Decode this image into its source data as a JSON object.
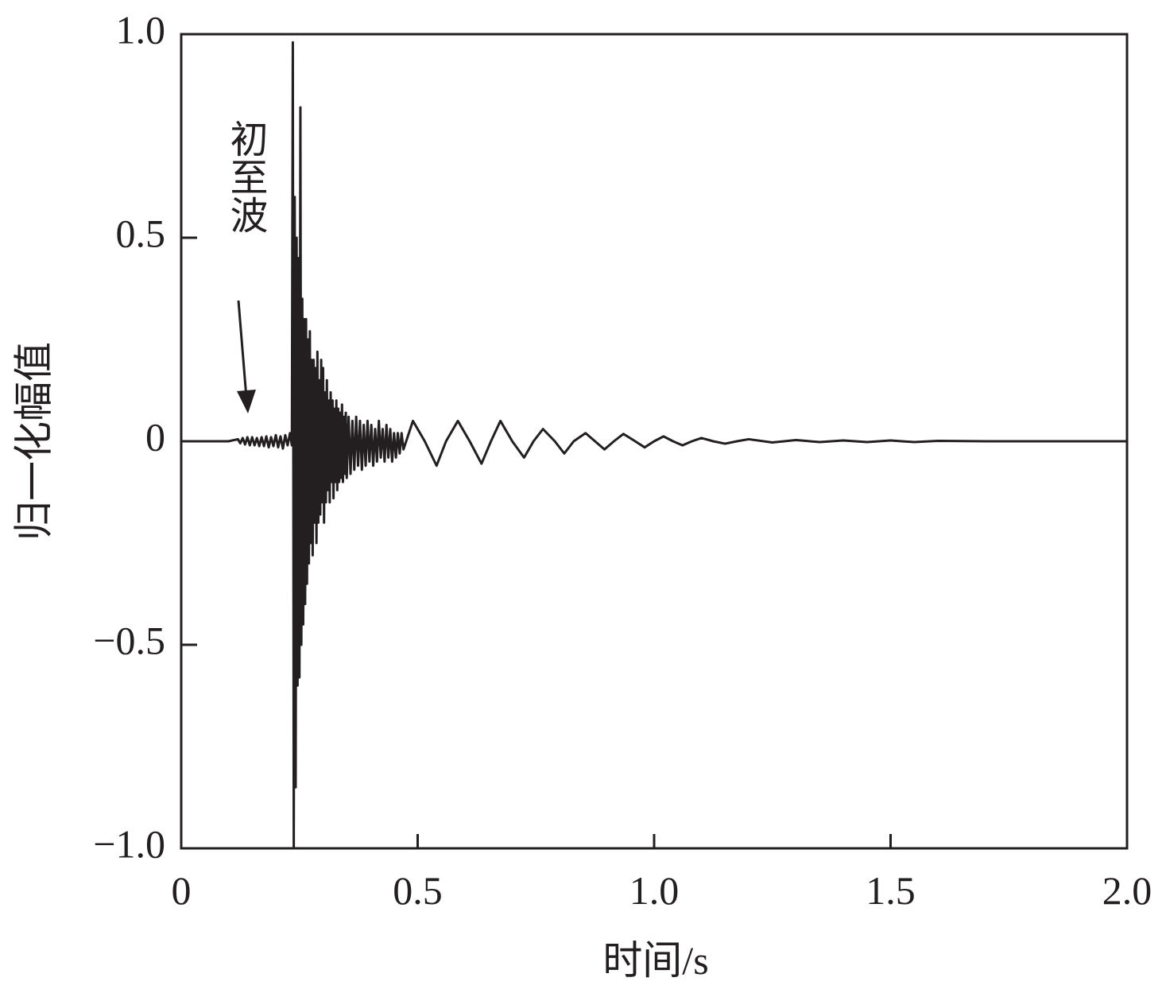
{
  "chart_data": {
    "type": "line",
    "xlabel": "时间/s",
    "ylabel": "归一化幅值",
    "annotation": "初至波",
    "xlim": [
      0,
      2
    ],
    "ylim": [
      -1,
      1
    ],
    "xticks": [
      0,
      0.5,
      {
        "value": 1,
        "label": "1.0"
      },
      1.5,
      {
        "value": 2,
        "label": "2.0"
      }
    ],
    "yticks": [
      {
        "value": -1,
        "label": "−1.0"
      },
      {
        "value": -0.5,
        "label": "−0.5"
      },
      0,
      0.5,
      {
        "value": 1,
        "label": "1.0"
      }
    ],
    "x": [
      0,
      0.05,
      0.1,
      0.12,
      0.125,
      0.13,
      0.135,
      0.14,
      0.145,
      0.15,
      0.155,
      0.16,
      0.165,
      0.17,
      0.175,
      0.18,
      0.185,
      0.19,
      0.195,
      0.2,
      0.205,
      0.21,
      0.215,
      0.22,
      0.225,
      0.23,
      0.234,
      0.236,
      0.238,
      0.24,
      0.242,
      0.244,
      0.246,
      0.248,
      0.25,
      0.252,
      0.254,
      0.256,
      0.258,
      0.26,
      0.262,
      0.264,
      0.266,
      0.268,
      0.27,
      0.272,
      0.274,
      0.276,
      0.278,
      0.28,
      0.282,
      0.284,
      0.286,
      0.288,
      0.29,
      0.292,
      0.294,
      0.296,
      0.298,
      0.3,
      0.302,
      0.304,
      0.306,
      0.308,
      0.31,
      0.312,
      0.314,
      0.316,
      0.318,
      0.32,
      0.322,
      0.324,
      0.326,
      0.328,
      0.33,
      0.332,
      0.334,
      0.336,
      0.338,
      0.34,
      0.342,
      0.344,
      0.346,
      0.348,
      0.35,
      0.354,
      0.358,
      0.362,
      0.366,
      0.37,
      0.374,
      0.378,
      0.382,
      0.386,
      0.39,
      0.394,
      0.398,
      0.402,
      0.406,
      0.41,
      0.414,
      0.418,
      0.422,
      0.426,
      0.43,
      0.434,
      0.438,
      0.442,
      0.446,
      0.45,
      0.454,
      0.458,
      0.462,
      0.466,
      0.47,
      0.49,
      0.515,
      0.54,
      0.56,
      0.585,
      0.61,
      0.635,
      0.655,
      0.675,
      0.7,
      0.725,
      0.745,
      0.765,
      0.79,
      0.81,
      0.83,
      0.855,
      0.875,
      0.895,
      0.915,
      0.935,
      0.96,
      0.98,
      1.0,
      1.02,
      1.04,
      1.06,
      1.08,
      1.1,
      1.125,
      1.15,
      1.175,
      1.2,
      1.25,
      1.3,
      1.35,
      1.4,
      1.45,
      1.5,
      1.55,
      1.6,
      1.7,
      1.8,
      1.9,
      2.0
    ],
    "series": [
      {
        "color": "#231f20",
        "values": [
          0,
          0,
          0,
          0.005,
          -0.005,
          0.008,
          -0.008,
          0.01,
          -0.01,
          0.01,
          -0.01,
          0.008,
          -0.012,
          0.01,
          -0.012,
          0.012,
          -0.015,
          0.01,
          -0.012,
          0.015,
          -0.015,
          0.012,
          -0.018,
          0.015,
          -0.01,
          0.02,
          -0.01,
          0.98,
          -1.0,
          0.6,
          -0.85,
          0.5,
          -0.6,
          0.45,
          -0.58,
          0.82,
          -0.5,
          0.35,
          -0.45,
          0.3,
          -0.4,
          0.3,
          -0.35,
          0.25,
          -0.3,
          0.27,
          -0.25,
          0.2,
          -0.28,
          0.2,
          -0.2,
          0.18,
          -0.25,
          0.22,
          -0.2,
          0.15,
          -0.18,
          0.2,
          -0.15,
          0.18,
          -0.2,
          0.12,
          -0.15,
          0.15,
          -0.12,
          0.1,
          -0.15,
          0.12,
          -0.1,
          0.1,
          -0.14,
          0.08,
          -0.1,
          0.1,
          -0.12,
          0.08,
          -0.1,
          0.07,
          -0.09,
          0.09,
          -0.1,
          0.06,
          -0.08,
          0.07,
          -0.09,
          0.06,
          -0.08,
          0.05,
          -0.07,
          0.06,
          -0.06,
          0.05,
          -0.07,
          0.04,
          -0.06,
          0.05,
          -0.05,
          0.04,
          -0.06,
          0.03,
          -0.05,
          0.05,
          -0.04,
          0.03,
          -0.05,
          0.04,
          -0.04,
          0.03,
          -0.05,
          0.02,
          -0.04,
          0.02,
          -0.03,
          0.02,
          -0.02,
          0.05,
          0,
          -0.06,
          0,
          0.05,
          0,
          -0.055,
          0,
          0.05,
          0,
          -0.04,
          0,
          0.03,
          0,
          -0.03,
          0,
          0.02,
          0,
          -0.02,
          0,
          0.018,
          0,
          -0.015,
          0,
          0.012,
          0,
          -0.01,
          0,
          0.008,
          0,
          -0.006,
          0,
          0.005,
          -0.003,
          0.003,
          -0.002,
          0.002,
          -0.002,
          0.002,
          -0.002,
          0.001,
          0,
          0,
          0,
          0
        ]
      }
    ]
  }
}
